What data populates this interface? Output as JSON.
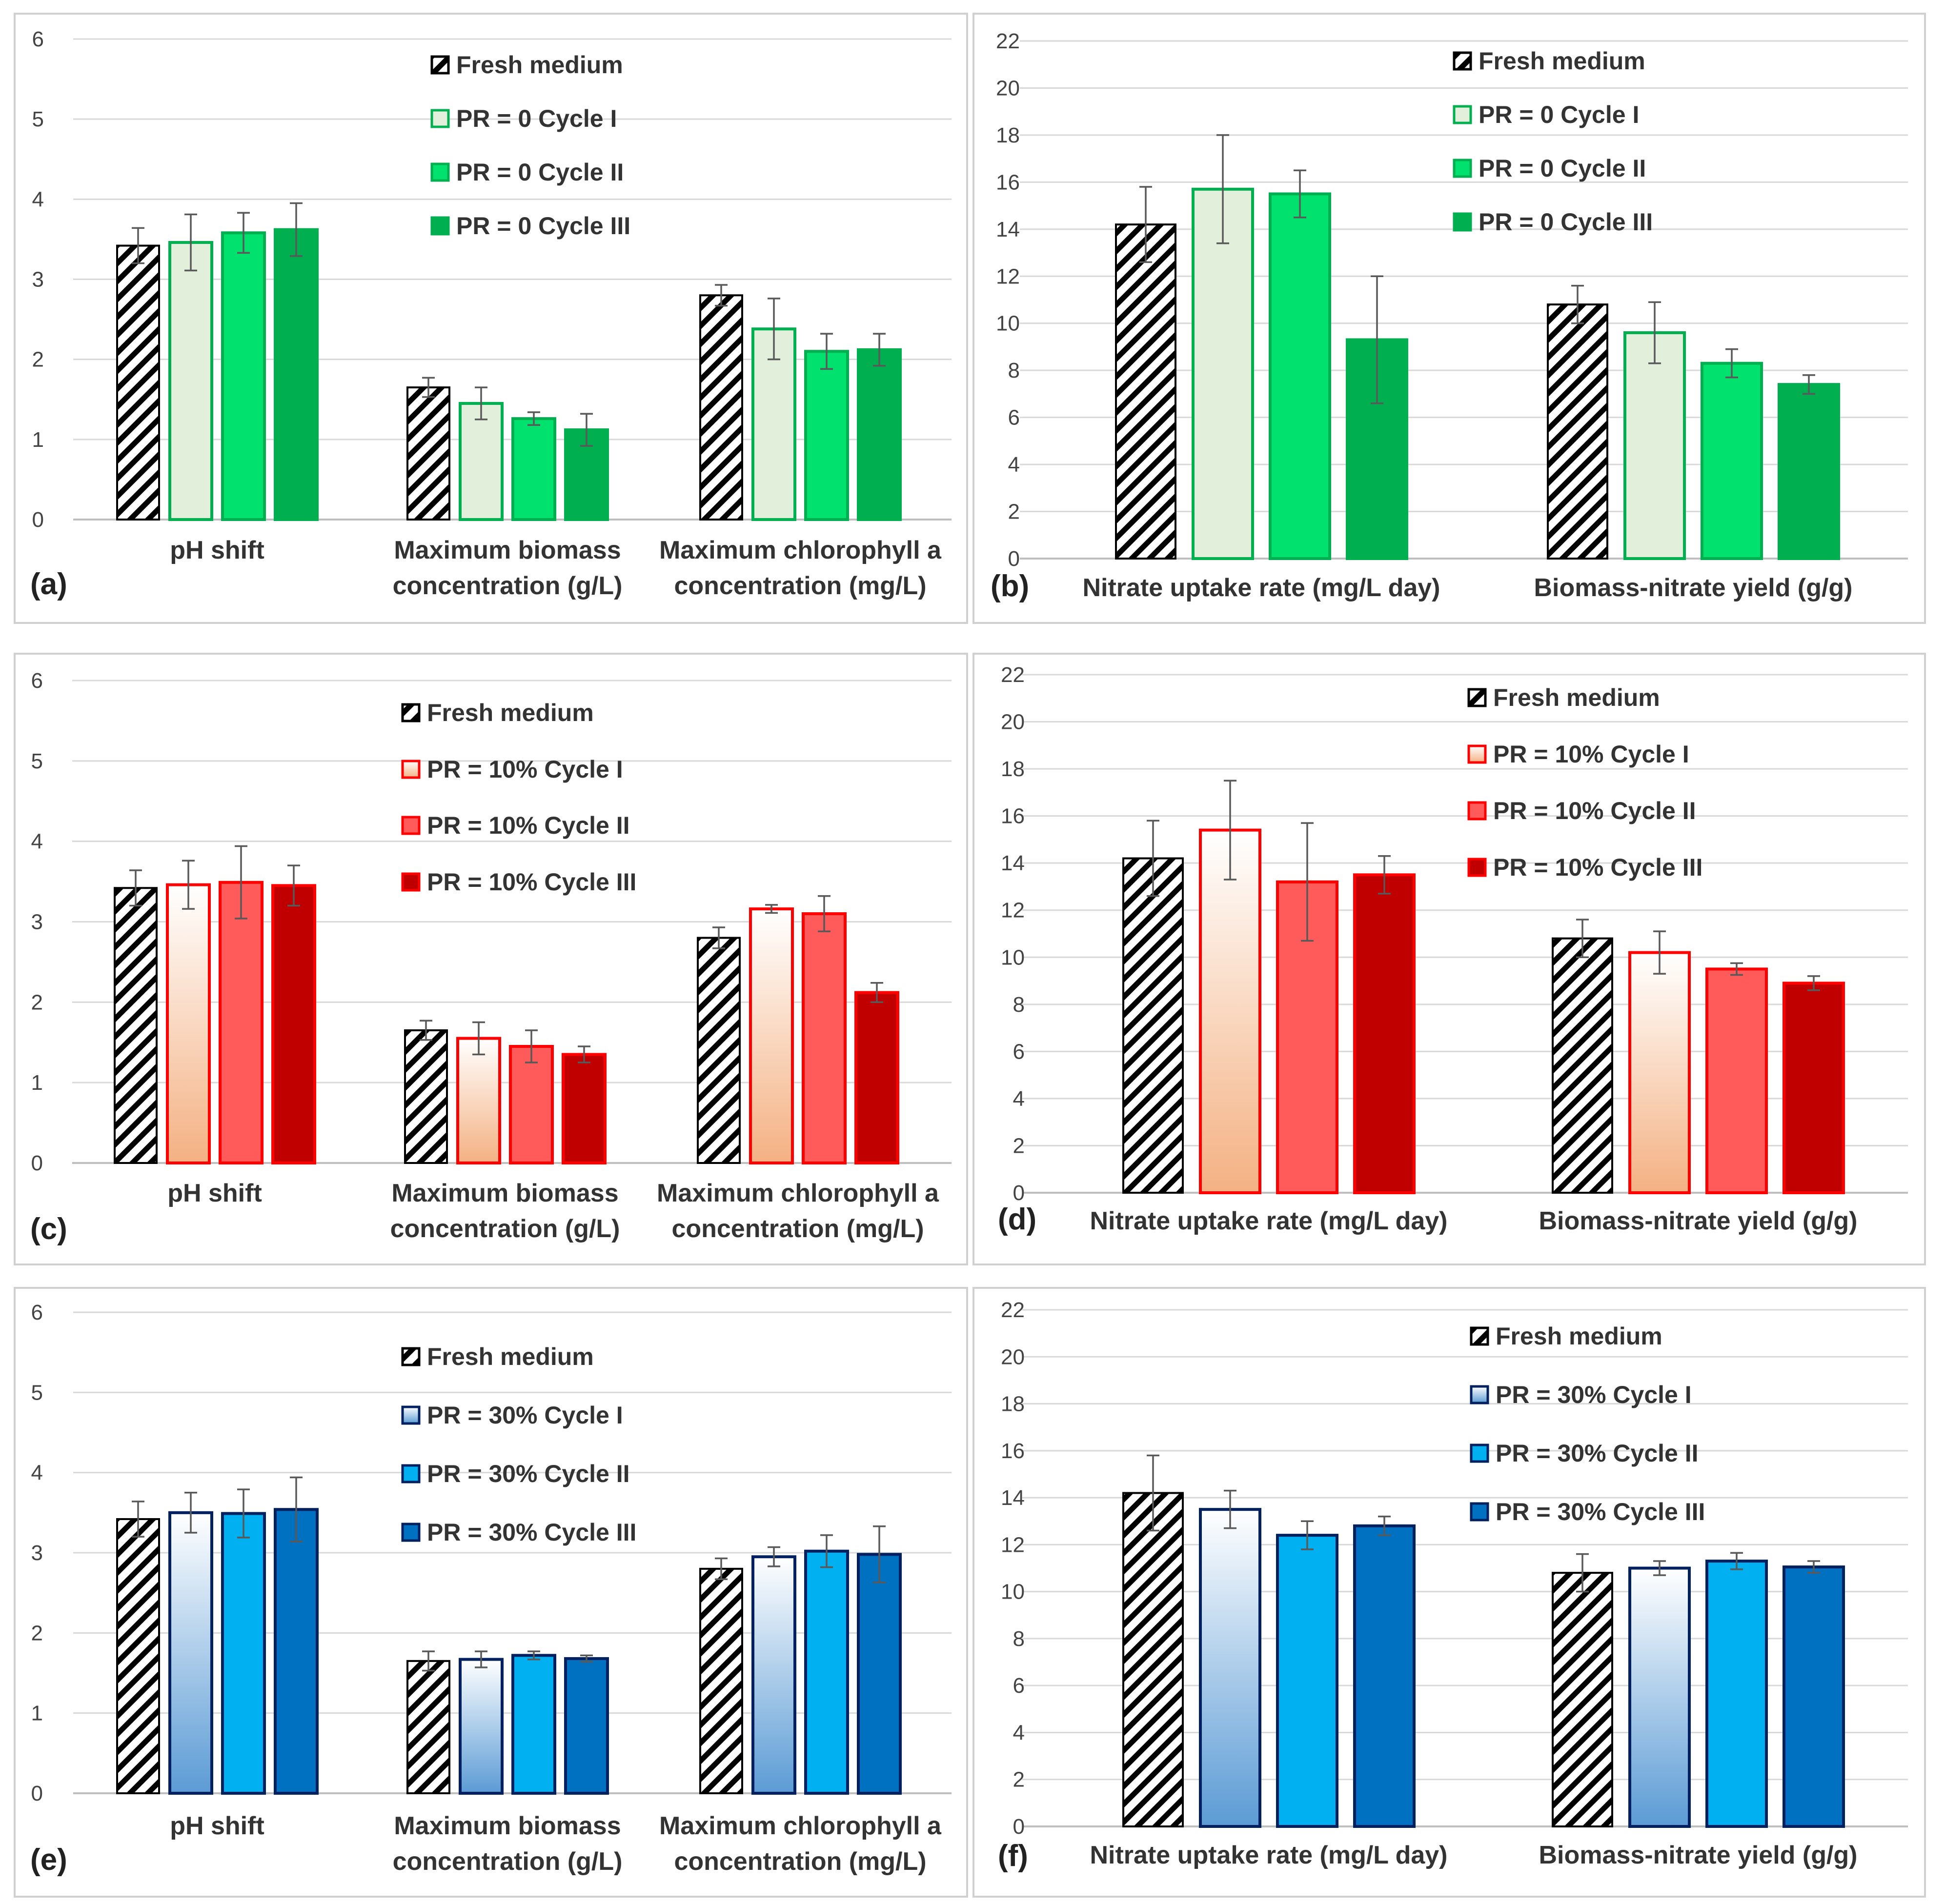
{
  "chart_data": [
    {
      "panel": "(a)",
      "type": "bar",
      "ylim": [
        0,
        6
      ],
      "yticks": [
        0,
        1,
        2,
        3,
        4,
        5,
        6
      ],
      "categories": [
        [
          "pH shift"
        ],
        [
          "Maximum biomass",
          "concentration (g/L)"
        ],
        [
          "Maximum chlorophyll a",
          "concentration (mg/L)"
        ]
      ],
      "series": [
        {
          "name": "Fresh medium",
          "style": "hatch",
          "values": [
            3.42,
            1.65,
            2.8
          ],
          "errors": [
            0.22,
            0.12,
            0.13
          ]
        },
        {
          "name": "PR = 0 Cycle I",
          "style": "green1",
          "values": [
            3.46,
            1.45,
            2.38
          ],
          "errors": [
            0.35,
            0.2,
            0.38
          ]
        },
        {
          "name": "PR = 0 Cycle II",
          "style": "green2",
          "values": [
            3.58,
            1.26,
            2.1
          ],
          "errors": [
            0.25,
            0.08,
            0.22
          ]
        },
        {
          "name": "PR = 0 Cycle III",
          "style": "green3",
          "values": [
            3.62,
            1.12,
            2.12
          ],
          "errors": [
            0.33,
            0.2,
            0.2
          ]
        }
      ]
    },
    {
      "panel": "(b)",
      "type": "bar",
      "ylim": [
        0,
        22
      ],
      "yticks": [
        0,
        2,
        4,
        6,
        8,
        10,
        12,
        14,
        16,
        18,
        20,
        22
      ],
      "categories": [
        [
          "Nitrate uptake rate (mg/L day)"
        ],
        [
          "Biomass-nitrate yield (g/g)"
        ]
      ],
      "series": [
        {
          "name": "Fresh medium",
          "style": "hatch",
          "values": [
            14.2,
            10.8
          ],
          "errors": [
            1.6,
            0.8
          ]
        },
        {
          "name": "PR = 0 Cycle I",
          "style": "green1",
          "values": [
            15.7,
            9.6
          ],
          "errors": [
            2.3,
            1.3
          ]
        },
        {
          "name": "PR = 0 Cycle II",
          "style": "green2",
          "values": [
            15.5,
            8.3
          ],
          "errors": [
            1.0,
            0.6
          ]
        },
        {
          "name": "PR = 0 Cycle III",
          "style": "green3",
          "values": [
            9.3,
            7.4
          ],
          "errors": [
            2.7,
            0.4
          ]
        }
      ]
    },
    {
      "panel": "(c)",
      "type": "bar",
      "ylim": [
        0,
        6
      ],
      "yticks": [
        0,
        1,
        2,
        3,
        4,
        5,
        6
      ],
      "categories": [
        [
          "pH shift"
        ],
        [
          "Maximum biomass",
          "concentration (g/L)"
        ],
        [
          "Maximum chlorophyll a",
          "concentration (mg/L)"
        ]
      ],
      "series": [
        {
          "name": "Fresh medium",
          "style": "hatch",
          "values": [
            3.42,
            1.65,
            2.8
          ],
          "errors": [
            0.22,
            0.12,
            0.13
          ]
        },
        {
          "name": "PR = 10% Cycle I",
          "style": "red1",
          "values": [
            3.46,
            1.55,
            3.16
          ],
          "errors": [
            0.3,
            0.2,
            0.05
          ]
        },
        {
          "name": "PR = 10% Cycle II",
          "style": "red2",
          "values": [
            3.49,
            1.45,
            3.1
          ],
          "errors": [
            0.45,
            0.2,
            0.22
          ]
        },
        {
          "name": "PR = 10% Cycle III",
          "style": "red3",
          "values": [
            3.45,
            1.35,
            2.12
          ],
          "errors": [
            0.25,
            0.1,
            0.12
          ]
        }
      ]
    },
    {
      "panel": "(d)",
      "type": "bar",
      "ylim": [
        0,
        22
      ],
      "yticks": [
        0,
        2,
        4,
        6,
        8,
        10,
        12,
        14,
        16,
        18,
        20,
        22
      ],
      "categories": [
        [
          "Nitrate uptake rate (mg/L day)"
        ],
        [
          "Biomass-nitrate yield (g/g)"
        ]
      ],
      "series": [
        {
          "name": "Fresh medium",
          "style": "hatch",
          "values": [
            14.2,
            10.8
          ],
          "errors": [
            1.6,
            0.8
          ]
        },
        {
          "name": "PR = 10% Cycle I",
          "style": "red1",
          "values": [
            15.4,
            10.2
          ],
          "errors": [
            2.1,
            0.9
          ]
        },
        {
          "name": "PR = 10% Cycle II",
          "style": "red2",
          "values": [
            13.2,
            9.5
          ],
          "errors": [
            2.5,
            0.25
          ]
        },
        {
          "name": "PR = 10% Cycle III",
          "style": "red3",
          "values": [
            13.5,
            8.9
          ],
          "errors": [
            0.8,
            0.3
          ]
        }
      ]
    },
    {
      "panel": "(e)",
      "type": "bar",
      "ylim": [
        0,
        6
      ],
      "yticks": [
        0,
        1,
        2,
        3,
        4,
        5,
        6
      ],
      "categories": [
        [
          "pH shift"
        ],
        [
          "Maximum biomass",
          "concentration (g/L)"
        ],
        [
          "Maximum chlorophyll a",
          "concentration (mg/L)"
        ]
      ],
      "series": [
        {
          "name": "Fresh medium",
          "style": "hatch",
          "values": [
            3.42,
            1.65,
            2.8
          ],
          "errors": [
            0.22,
            0.12,
            0.13
          ]
        },
        {
          "name": "PR = 30% Cycle I",
          "style": "blue1",
          "values": [
            3.5,
            1.67,
            2.95
          ],
          "errors": [
            0.25,
            0.1,
            0.12
          ]
        },
        {
          "name": "PR = 30% Cycle II",
          "style": "blue2",
          "values": [
            3.49,
            1.72,
            3.02
          ],
          "errors": [
            0.3,
            0.05,
            0.2
          ]
        },
        {
          "name": "PR = 30% Cycle III",
          "style": "blue3",
          "values": [
            3.54,
            1.68,
            2.98
          ],
          "errors": [
            0.4,
            0.04,
            0.35
          ]
        }
      ]
    },
    {
      "panel": "(f)",
      "type": "bar",
      "ylim": [
        0,
        22
      ],
      "yticks": [
        0,
        2,
        4,
        6,
        8,
        10,
        12,
        14,
        16,
        18,
        20,
        22
      ],
      "categories": [
        [
          "Nitrate uptake rate (mg/L day)"
        ],
        [
          "Biomass-nitrate yield (g/g)"
        ]
      ],
      "series": [
        {
          "name": "Fresh medium",
          "style": "hatch",
          "values": [
            14.2,
            10.8
          ],
          "errors": [
            1.6,
            0.8
          ]
        },
        {
          "name": "PR = 30% Cycle I",
          "style": "blue1",
          "values": [
            13.5,
            11.0
          ],
          "errors": [
            0.8,
            0.3
          ]
        },
        {
          "name": "PR = 30% Cycle II",
          "style": "blue2",
          "values": [
            12.4,
            11.3
          ],
          "errors": [
            0.6,
            0.35
          ]
        },
        {
          "name": "PR = 30% Cycle III",
          "style": "blue3",
          "values": [
            12.8,
            11.05
          ],
          "errors": [
            0.4,
            0.25
          ]
        }
      ]
    }
  ],
  "colors": {
    "green1_fill": "#e2efda",
    "green1_edge": "#00b050",
    "green2_fill": "#00e16e",
    "green2_edge": "#00b050",
    "green3_fill": "#00b050",
    "green3_edge": "#00b050",
    "red1_top": "#ffffff",
    "red1_bottom": "#f4b183",
    "red1_edge": "#ff0000",
    "red2_fill": "#ff5b5b",
    "red2_edge": "#ff0000",
    "red3_fill": "#c00000",
    "red3_edge": "#ff0000",
    "blue1_top": "#ffffff",
    "blue1_bottom": "#5b9bd5",
    "blue1_edge": "#002060",
    "blue2_fill": "#00b0f0",
    "blue2_edge": "#002060",
    "blue3_fill": "#0070c0",
    "blue3_edge": "#002060",
    "grid": "#d9d9d9",
    "axis": "#bfbfbf",
    "frame": "#d0d0d0",
    "error": "#595959"
  }
}
